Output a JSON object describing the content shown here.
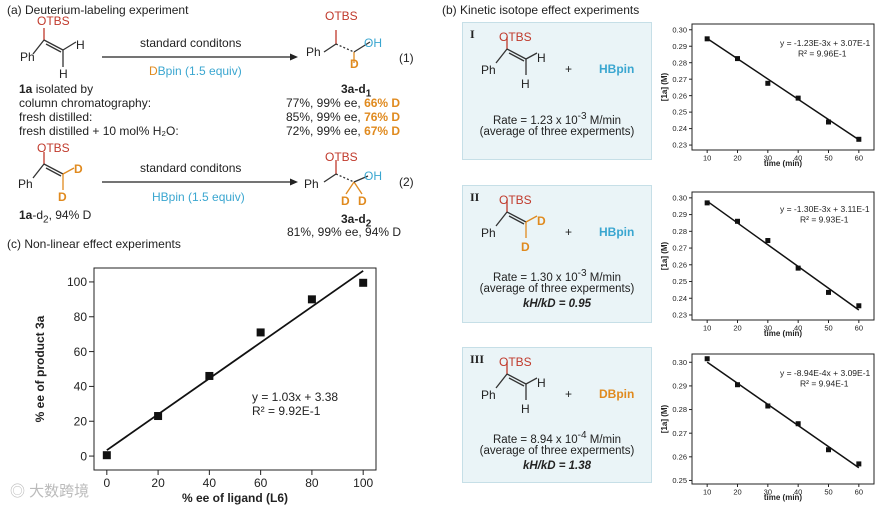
{
  "sectionA": {
    "title": "(a) Deuterium-labeling experiment",
    "reaction1": {
      "sm_label_bold": "1a",
      "sm_label_rest": " isolated by",
      "arrow_above": "standard conditons",
      "reagent_prefix": "D",
      "reagent_rest": "Bpin  (1.5 equiv)",
      "product_label": "3a-d",
      "product_sub": "1",
      "eq_number": "(1)",
      "rows": [
        {
          "condition": "column chromatography:",
          "result": "77%, 99% ee, ",
          "deut": "66% D"
        },
        {
          "condition": "fresh distilled:",
          "result": "85%, 99% ee, ",
          "deut": "76% D"
        },
        {
          "condition": "fresh distilled + 10 mol% H₂O:",
          "result": "72%, 99% ee, ",
          "deut": "67% D"
        }
      ]
    },
    "reaction2": {
      "arrow_above": "standard conditons",
      "reagent": "HBpin  (1.5 equiv)",
      "sm_label_bold": "1a",
      "sm_label_rest": "-d",
      "sm_label_sub": "2",
      "sm_label_tail": ", 94% D",
      "product_label": "3a-d",
      "product_sub": "2",
      "result": "81%, 99% ee, 94% D",
      "eq_number": "(2)"
    },
    "mol_text": {
      "otbs": "OTBS",
      "ph": "Ph",
      "h": "H",
      "d": "D",
      "oh": "OH"
    }
  },
  "sectionB": {
    "title": "(b) Kinetic isotope effect experiments",
    "plus": "+",
    "boxes": [
      {
        "num": "I",
        "reagent": "HBpin",
        "rate_prefix": "Rate = 1.23 x 10",
        "rate_exp": "-3",
        "rate_unit": " M/min",
        "avg": "(average of three experments)",
        "kie": ""
      },
      {
        "num": "II",
        "reagent": "HBpin",
        "rate_prefix": "Rate = 1.30 x 10",
        "rate_exp": "-3",
        "rate_unit": " M/min",
        "avg": "(average of three experments)",
        "kie": "kH/kD = 0.95"
      },
      {
        "num": "III",
        "reagent": "DBpin",
        "rate_prefix": "Rate = 8.94 x 10",
        "rate_exp": "-4",
        "rate_unit": " M/min",
        "avg": "(average of three experments)",
        "kie": "kH/kD = 1.38"
      }
    ]
  },
  "sectionC": {
    "title": "(c) Non-linear effect experiments"
  },
  "watermark": "大数跨境",
  "chart_data": [
    {
      "type": "scatter",
      "title": "Non-linear effect experiments",
      "xlabel": "% ee of ligand (L6)",
      "ylabel": "% ee of product 3a",
      "x": [
        0,
        20,
        40,
        60,
        80,
        100
      ],
      "y": [
        0.5,
        23,
        46,
        71,
        90,
        99.5
      ],
      "xticks": [
        0,
        20,
        40,
        60,
        80,
        100
      ],
      "yticks": [
        0,
        20,
        40,
        60,
        80,
        100
      ],
      "xlim": [
        -5,
        105
      ],
      "ylim": [
        -8,
        108
      ],
      "fit": {
        "slope": 1.03,
        "intercept": 3.38,
        "x_range": [
          0,
          100
        ]
      },
      "annotation_eq": "y = 1.03x + 3.38",
      "annotation_r2": "R² = 9.92E-1"
    },
    {
      "type": "scatter",
      "xlabel": "time (min)",
      "ylabel": "[1a] (M)",
      "x": [
        10,
        20,
        30,
        40,
        50,
        60
      ],
      "y": [
        0.2945,
        0.2825,
        0.2675,
        0.2585,
        0.244,
        0.2335
      ],
      "xticks": [
        10,
        20,
        30,
        40,
        50,
        60
      ],
      "yticks": [
        0.23,
        0.24,
        0.25,
        0.26,
        0.27,
        0.28,
        0.29,
        0.3
      ],
      "xlim": [
        5,
        65
      ],
      "ylim": [
        0.227,
        0.3035
      ],
      "fit": {
        "slope": -0.00123,
        "intercept": 0.307,
        "x_range": [
          10,
          60
        ]
      },
      "annotation_eq": "y = -1.23E-3x + 3.07E-1",
      "annotation_r2": "R² = 9.96E-1"
    },
    {
      "type": "scatter",
      "xlabel": "time (min)",
      "ylabel": "[1a] (M)",
      "x": [
        10,
        20,
        30,
        40,
        50,
        60
      ],
      "y": [
        0.297,
        0.286,
        0.2745,
        0.258,
        0.2435,
        0.2355
      ],
      "xticks": [
        10,
        20,
        30,
        40,
        50,
        60
      ],
      "yticks": [
        0.23,
        0.24,
        0.25,
        0.26,
        0.27,
        0.28,
        0.29,
        0.3
      ],
      "xlim": [
        5,
        65
      ],
      "ylim": [
        0.227,
        0.3035
      ],
      "fit": {
        "slope": -0.0013,
        "intercept": 0.311,
        "x_range": [
          10,
          60
        ]
      },
      "annotation_eq": "y = -1.30E-3x + 3.11E-1",
      "annotation_r2": "R² = 9.93E-1"
    },
    {
      "type": "scatter",
      "xlabel": "time (min)",
      "ylabel": "[1a] (M)",
      "x": [
        10,
        20,
        30,
        40,
        50,
        60
      ],
      "y": [
        0.3015,
        0.2905,
        0.2815,
        0.274,
        0.263,
        0.257
      ],
      "xticks": [
        10,
        20,
        30,
        40,
        50,
        60
      ],
      "yticks": [
        0.25,
        0.26,
        0.27,
        0.28,
        0.29,
        0.3
      ],
      "xlim": [
        5,
        65
      ],
      "ylim": [
        0.2485,
        0.3035
      ],
      "fit": {
        "slope": -0.000894,
        "intercept": 0.309,
        "x_range": [
          10,
          60
        ]
      },
      "annotation_eq": "y = -8.94E-4x + 3.09E-1",
      "annotation_r2": "R² = 9.94E-1"
    }
  ]
}
